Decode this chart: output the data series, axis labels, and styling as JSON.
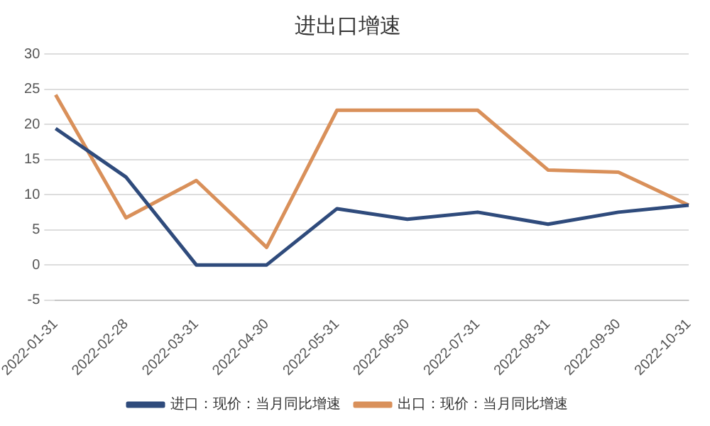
{
  "chart_data": {
    "type": "line",
    "title": "进出口增速",
    "categories": [
      "2022-01-31",
      "2022-02-28",
      "2022-03-31",
      "2022-04-30",
      "2022-05-31",
      "2022-06-30",
      "2022-07-31",
      "2022-08-31",
      "2022-09-30",
      "2022-10-31"
    ],
    "series": [
      {
        "name": "进口：现价：当月同比增速",
        "color": "#2f4b7c",
        "values": [
          19.4,
          12.5,
          0,
          0,
          8,
          6.5,
          7.5,
          5.8,
          7.5,
          8.5
        ]
      },
      {
        "name": "出口：现价：当月同比增速",
        "color": "#d9905a",
        "values": [
          24.2,
          6.7,
          12,
          2.5,
          22,
          22,
          22,
          13.5,
          13.2,
          8.5
        ]
      }
    ],
    "ylim": [
      -5,
      30
    ],
    "yticks": [
      -5,
      0,
      5,
      10,
      15,
      20,
      25,
      30
    ],
    "grid": "y",
    "legend": "bottom",
    "marker": "none"
  }
}
